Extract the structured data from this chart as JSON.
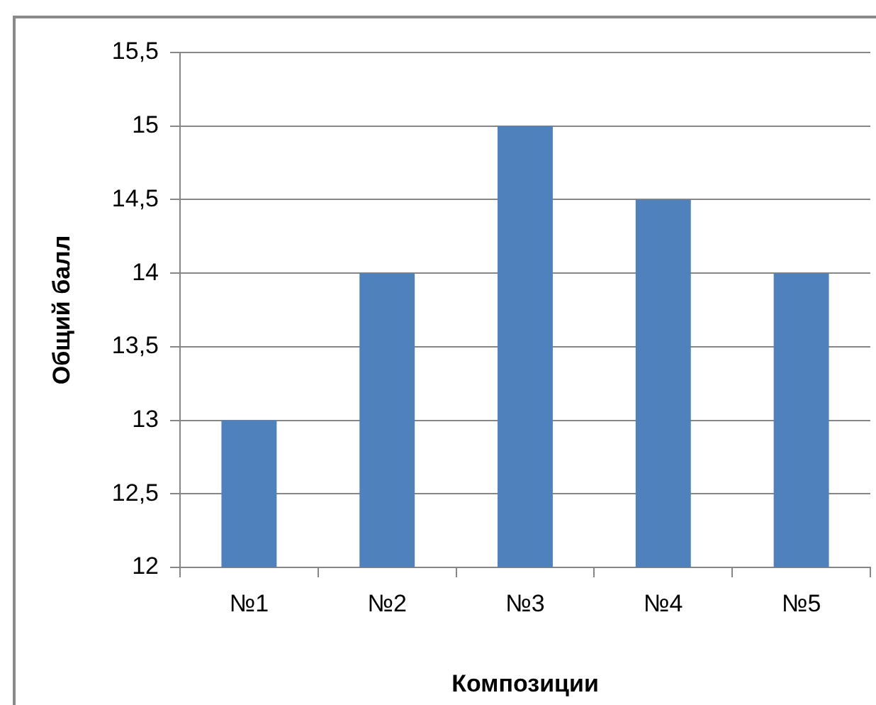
{
  "chart_data": {
    "type": "bar",
    "categories": [
      "№1",
      "№2",
      "№3",
      "№4",
      "№5"
    ],
    "values": [
      13,
      14,
      15,
      14.5,
      14
    ],
    "color": "#4f81bd",
    "xlabel": "Композиции",
    "ylabel": "Общий балл",
    "ylim": [
      12,
      15.5
    ],
    "yticks": [
      12,
      {
        "value": 12.5,
        "label": "12,5"
      },
      13,
      {
        "value": 13.5,
        "label": "13,5"
      },
      14,
      {
        "value": 14.5,
        "label": "14,5"
      },
      15,
      {
        "value": 15.5,
        "label": "15,5"
      }
    ],
    "grid": "y"
  }
}
